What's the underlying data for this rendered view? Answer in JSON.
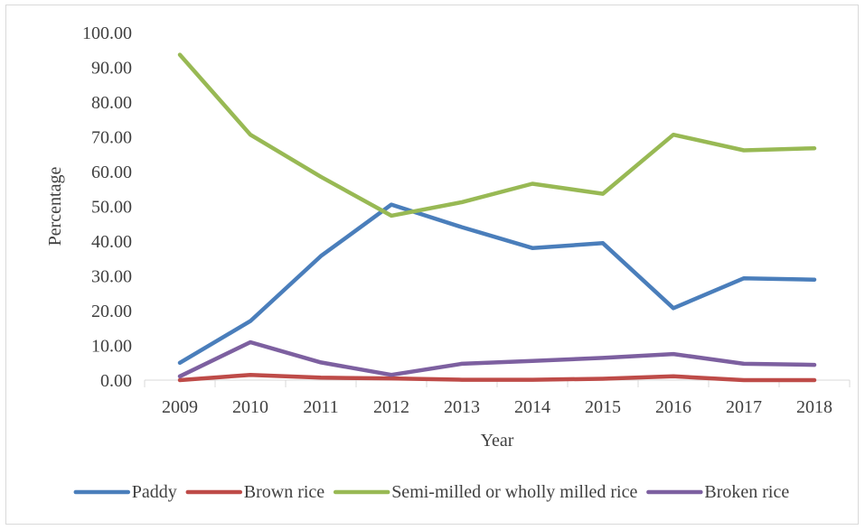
{
  "chart_data": {
    "type": "line",
    "title": "",
    "xlabel": "Year",
    "ylabel": "Percentage",
    "ylim": [
      0,
      100
    ],
    "y_ticks": [
      "0.00",
      "10.00",
      "20.00",
      "30.00",
      "40.00",
      "50.00",
      "60.00",
      "70.00",
      "80.00",
      "90.00",
      "100.00"
    ],
    "categories": [
      "2009",
      "2010",
      "2011",
      "2012",
      "2013",
      "2014",
      "2015",
      "2016",
      "2017",
      "2018"
    ],
    "grid": false,
    "legend_position": "bottom",
    "series": [
      {
        "name": "Paddy",
        "color": "#4a7ebb",
        "values": [
          5.0,
          17.0,
          35.7,
          50.5,
          44.0,
          38.0,
          39.4,
          20.7,
          29.3,
          28.9
        ]
      },
      {
        "name": "Brown rice",
        "color": "#be4b48",
        "values": [
          0.0,
          1.5,
          0.7,
          0.5,
          0.1,
          0.1,
          0.4,
          1.1,
          0.0,
          0.0
        ]
      },
      {
        "name": "Semi-milled or wholly milled rice",
        "color": "#98b954",
        "values": [
          93.6,
          70.6,
          58.5,
          47.3,
          51.2,
          56.5,
          53.6,
          70.6,
          66.1,
          66.7
        ]
      },
      {
        "name": "Broken rice",
        "color": "#7d60a0",
        "values": [
          1.1,
          10.9,
          5.1,
          1.5,
          4.7,
          5.5,
          6.4,
          7.5,
          4.7,
          4.4
        ]
      }
    ]
  }
}
